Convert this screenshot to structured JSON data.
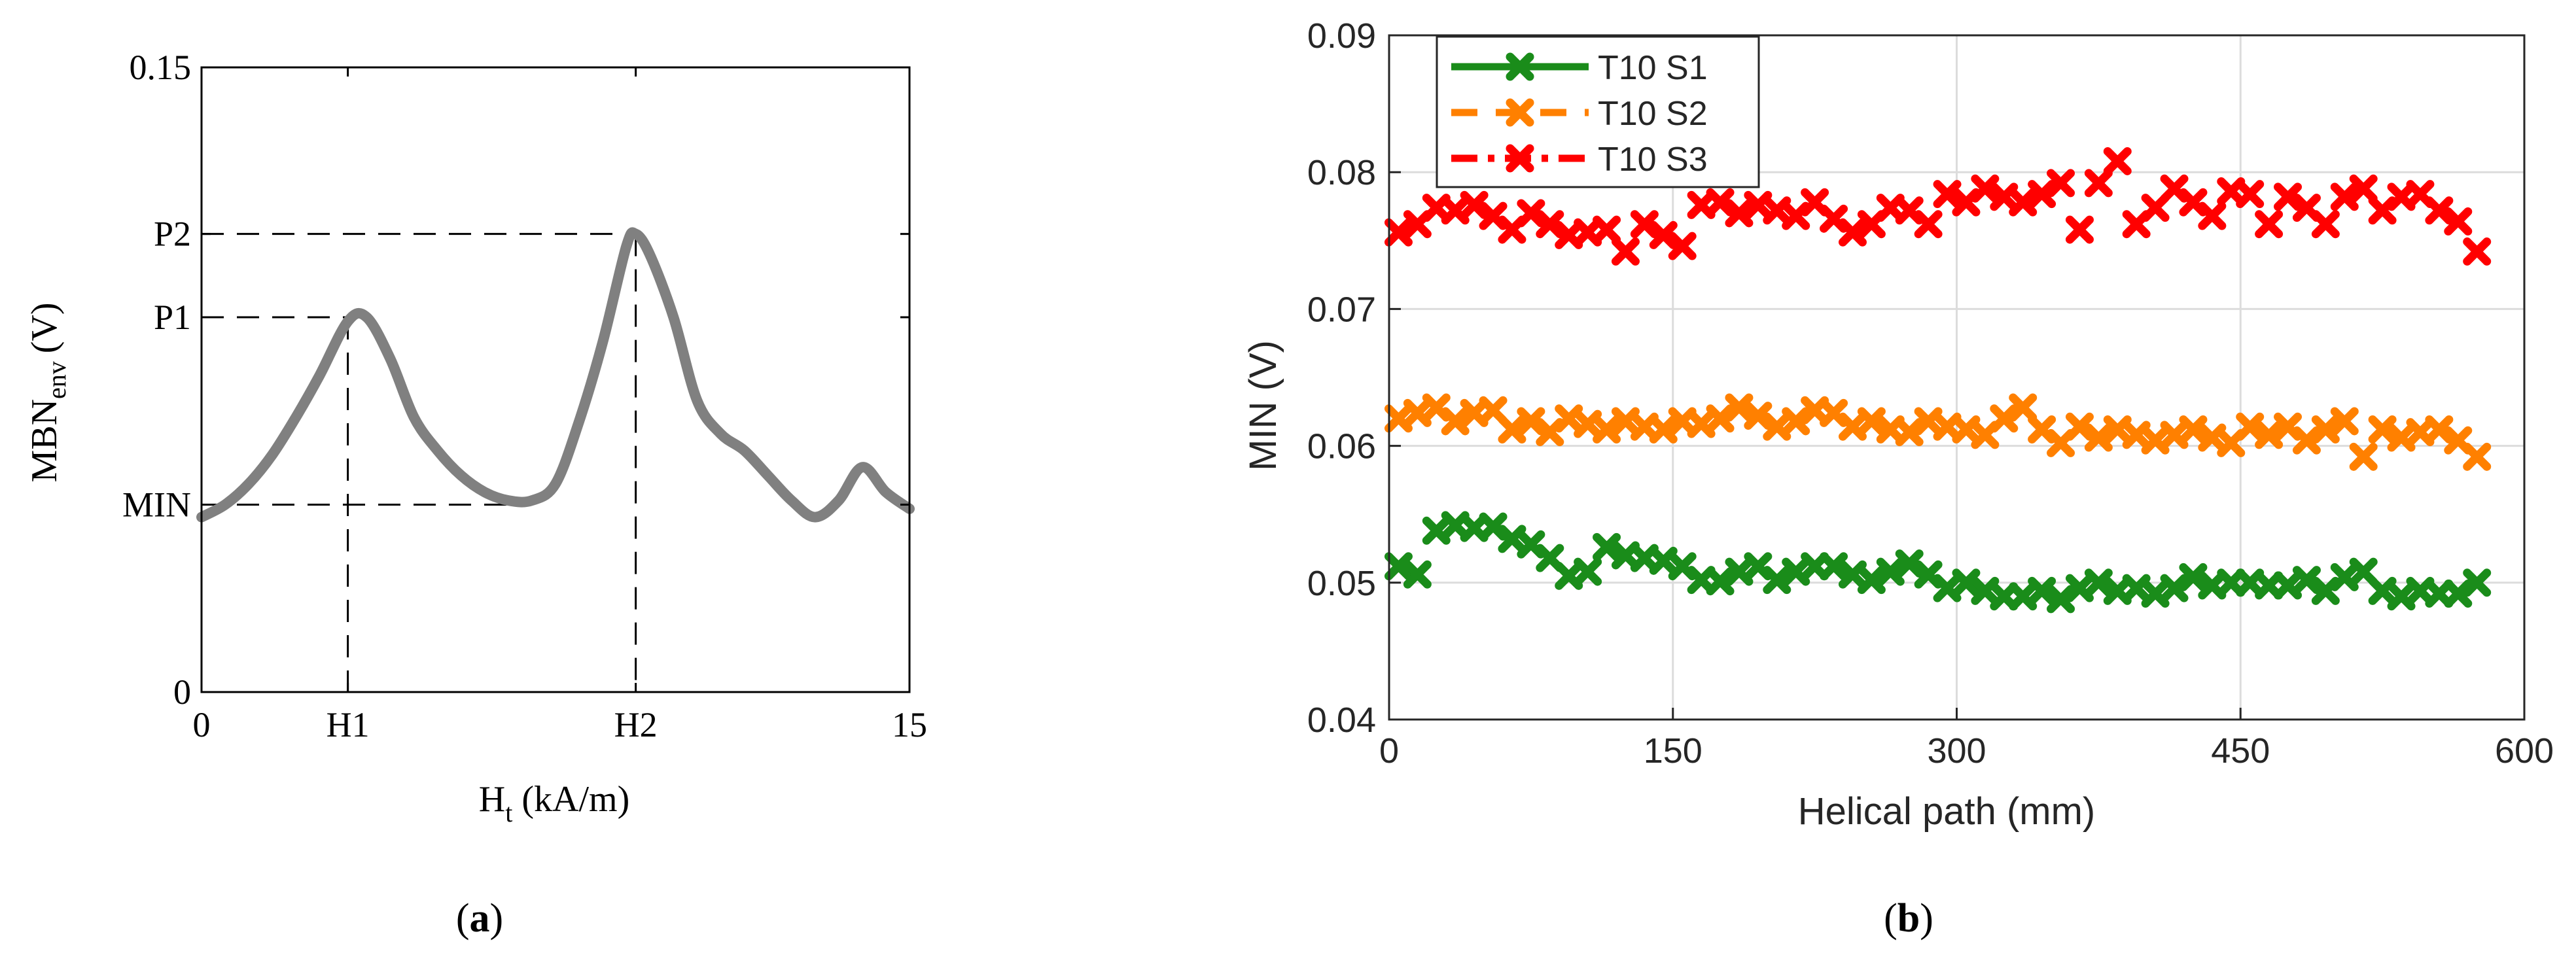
{
  "panel_a": {
    "caption": "a",
    "ylabel_main": "MBN",
    "ylabel_sub": "env",
    "ylabel_unit": "(V)",
    "xlabel_main": "H",
    "xlabel_sub": "t",
    "xlabel_unit": "(kA/m)",
    "chart_data": {
      "type": "line",
      "xlim": [
        0,
        15
      ],
      "ylim": [
        0,
        0.15
      ],
      "x_ticks": [
        {
          "value": 0,
          "label": "0"
        },
        {
          "value": 3.1,
          "label": "H1"
        },
        {
          "value": 9.2,
          "label": "H2"
        },
        {
          "value": 15,
          "label": "15"
        }
      ],
      "y_ticks": [
        {
          "value": 0,
          "label": "0"
        },
        {
          "value": 0.045,
          "label": "MIN"
        },
        {
          "value": 0.09,
          "label": "P1"
        },
        {
          "value": 0.11,
          "label": "P2"
        },
        {
          "value": 0.15,
          "label": "0.15"
        }
      ],
      "markers": [
        {
          "label": "MIN",
          "x": 6.5,
          "y": 0.045
        },
        {
          "label": "P1",
          "x": 3.1,
          "y": 0.09
        },
        {
          "label": "P2",
          "x": 9.2,
          "y": 0.11
        }
      ],
      "line_color": "#808080",
      "series": [
        {
          "x": [
            0,
            0.5,
            1.0,
            1.5,
            2.0,
            2.5,
            3.1,
            3.5,
            4.0,
            4.5,
            5.0,
            5.5,
            6.0,
            6.5,
            7.0,
            7.5,
            8.0,
            8.5,
            9.0,
            9.2,
            9.5,
            10.0,
            10.5,
            11.0,
            11.5,
            12.0,
            12.5,
            13.0,
            13.5,
            14.0,
            14.5,
            15.0
          ],
          "y": [
            0.042,
            0.045,
            0.05,
            0.057,
            0.066,
            0.076,
            0.089,
            0.09,
            0.08,
            0.066,
            0.058,
            0.052,
            0.048,
            0.046,
            0.046,
            0.05,
            0.065,
            0.084,
            0.107,
            0.11,
            0.105,
            0.09,
            0.07,
            0.062,
            0.058,
            0.052,
            0.046,
            0.042,
            0.046,
            0.054,
            0.048,
            0.044
          ]
        }
      ]
    }
  },
  "panel_b": {
    "caption": "b",
    "xlabel": "Helical path (mm)",
    "ylabel": "MIN (V)",
    "chart_data": {
      "type": "scatter",
      "xlim": [
        0,
        600
      ],
      "ylim": [
        0.04,
        0.09
      ],
      "x_ticks": [
        0,
        150,
        300,
        450,
        600
      ],
      "y_ticks": [
        0.04,
        0.05,
        0.06,
        0.07,
        0.08,
        0.09
      ],
      "y_tick_labels": [
        "0.04",
        "0.05",
        "0.06",
        "0.07",
        "0.08",
        "0.09"
      ],
      "grid": true,
      "legend_position": "top-left",
      "x": [
        5,
        15,
        25,
        35,
        45,
        55,
        65,
        75,
        85,
        95,
        105,
        115,
        125,
        135,
        145,
        155,
        165,
        175,
        185,
        195,
        205,
        215,
        225,
        235,
        245,
        255,
        265,
        275,
        285,
        295,
        305,
        315,
        325,
        335,
        345,
        355,
        365,
        375,
        385,
        395,
        405,
        415,
        425,
        435,
        445,
        455,
        465,
        475,
        485,
        495,
        505,
        515,
        525,
        535,
        545,
        555,
        565,
        575
      ],
      "series": [
        {
          "name": "T10 S1",
          "color": "#1a8c1a",
          "values": [
            0.0512,
            0.0506,
            0.0538,
            0.0542,
            0.054,
            0.0541,
            0.0532,
            0.0528,
            0.0518,
            0.0505,
            0.0508,
            0.0526,
            0.052,
            0.0518,
            0.0516,
            0.0512,
            0.0502,
            0.0501,
            0.0508,
            0.0512,
            0.0502,
            0.0508,
            0.0512,
            0.0512,
            0.0506,
            0.0502,
            0.0508,
            0.0514,
            0.0506,
            0.0496,
            0.05,
            0.0494,
            0.049,
            0.049,
            0.0494,
            0.0488,
            0.0496,
            0.05,
            0.0494,
            0.0496,
            0.0492,
            0.0496,
            0.0504,
            0.0498,
            0.05,
            0.05,
            0.0498,
            0.0498,
            0.0502,
            0.0494,
            0.0504,
            0.0508,
            0.0494,
            0.049,
            0.0494,
            0.0492,
            0.0492,
            0.05
          ]
        },
        {
          "name": "T10 S2",
          "color": "#ff8000",
          "values": [
            0.062,
            0.0624,
            0.0628,
            0.0618,
            0.0624,
            0.0626,
            0.0612,
            0.0618,
            0.061,
            0.062,
            0.0616,
            0.0612,
            0.0618,
            0.0614,
            0.0612,
            0.0618,
            0.0616,
            0.062,
            0.0628,
            0.0622,
            0.0614,
            0.0618,
            0.0626,
            0.0624,
            0.0614,
            0.0618,
            0.0612,
            0.061,
            0.0618,
            0.0614,
            0.0612,
            0.0608,
            0.062,
            0.0628,
            0.0612,
            0.0602,
            0.0614,
            0.0606,
            0.0612,
            0.0608,
            0.0604,
            0.0608,
            0.0612,
            0.0606,
            0.0602,
            0.0614,
            0.0608,
            0.0614,
            0.0604,
            0.0612,
            0.0618,
            0.0592,
            0.0612,
            0.0606,
            0.061,
            0.0612,
            0.0604,
            0.0592
          ]
        },
        {
          "name": "T10 S3",
          "color": "#ff0000",
          "values": [
            0.0756,
            0.0762,
            0.0774,
            0.0772,
            0.0776,
            0.0768,
            0.0758,
            0.077,
            0.0762,
            0.0754,
            0.0756,
            0.0758,
            0.0742,
            0.0762,
            0.0754,
            0.0746,
            0.0776,
            0.0778,
            0.077,
            0.0776,
            0.0772,
            0.0768,
            0.0778,
            0.0766,
            0.0756,
            0.0762,
            0.0774,
            0.0772,
            0.0762,
            0.0784,
            0.0778,
            0.0788,
            0.0782,
            0.0778,
            0.0784,
            0.0792,
            0.0758,
            0.0792,
            0.0808,
            0.0762,
            0.0774,
            0.0788,
            0.0778,
            0.0768,
            0.0786,
            0.0784,
            0.0762,
            0.0782,
            0.0774,
            0.0762,
            0.0782,
            0.0788,
            0.0772,
            0.0782,
            0.0784,
            0.0772,
            0.0764,
            0.0742
          ]
        }
      ]
    }
  }
}
